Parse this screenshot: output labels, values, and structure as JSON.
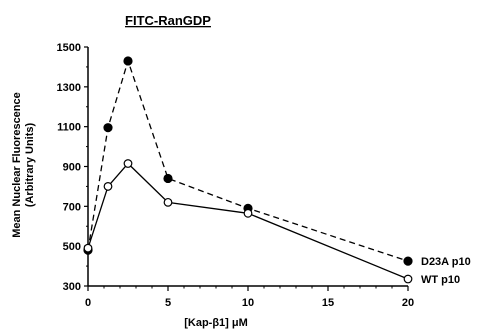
{
  "chart_data": {
    "type": "line",
    "title": "FITC-RanGDP",
    "xlabel": "[Kap-β1] μM",
    "ylabel": "Mean Nuclear Fluorescence",
    "ylabel_sub": "(Arbitrary Units)",
    "xlim": [
      0,
      20
    ],
    "ylim": [
      300,
      1500
    ],
    "x_ticks": [
      0,
      5,
      10,
      15,
      20
    ],
    "y_ticks": [
      300,
      500,
      700,
      900,
      1100,
      1300,
      1500
    ],
    "x_tick_labels": [
      "0",
      "5",
      "10",
      "15",
      "20"
    ],
    "y_tick_labels": [
      "300",
      "500",
      "700",
      "900",
      "1100",
      "1300",
      "1500"
    ],
    "grid": false,
    "series": [
      {
        "name": "D23A p10",
        "style": "dashed",
        "marker": "filled-circle",
        "color": "#000000",
        "x": [
          0,
          1.25,
          2.5,
          5,
          10,
          20
        ],
        "y": [
          480,
          1095,
          1430,
          840,
          690,
          425
        ]
      },
      {
        "name": "WT p10",
        "style": "solid",
        "marker": "open-circle",
        "color": "#000000",
        "x": [
          0,
          1.25,
          2.5,
          5,
          10,
          20
        ],
        "y": [
          490,
          800,
          915,
          720,
          665,
          335
        ]
      }
    ]
  }
}
